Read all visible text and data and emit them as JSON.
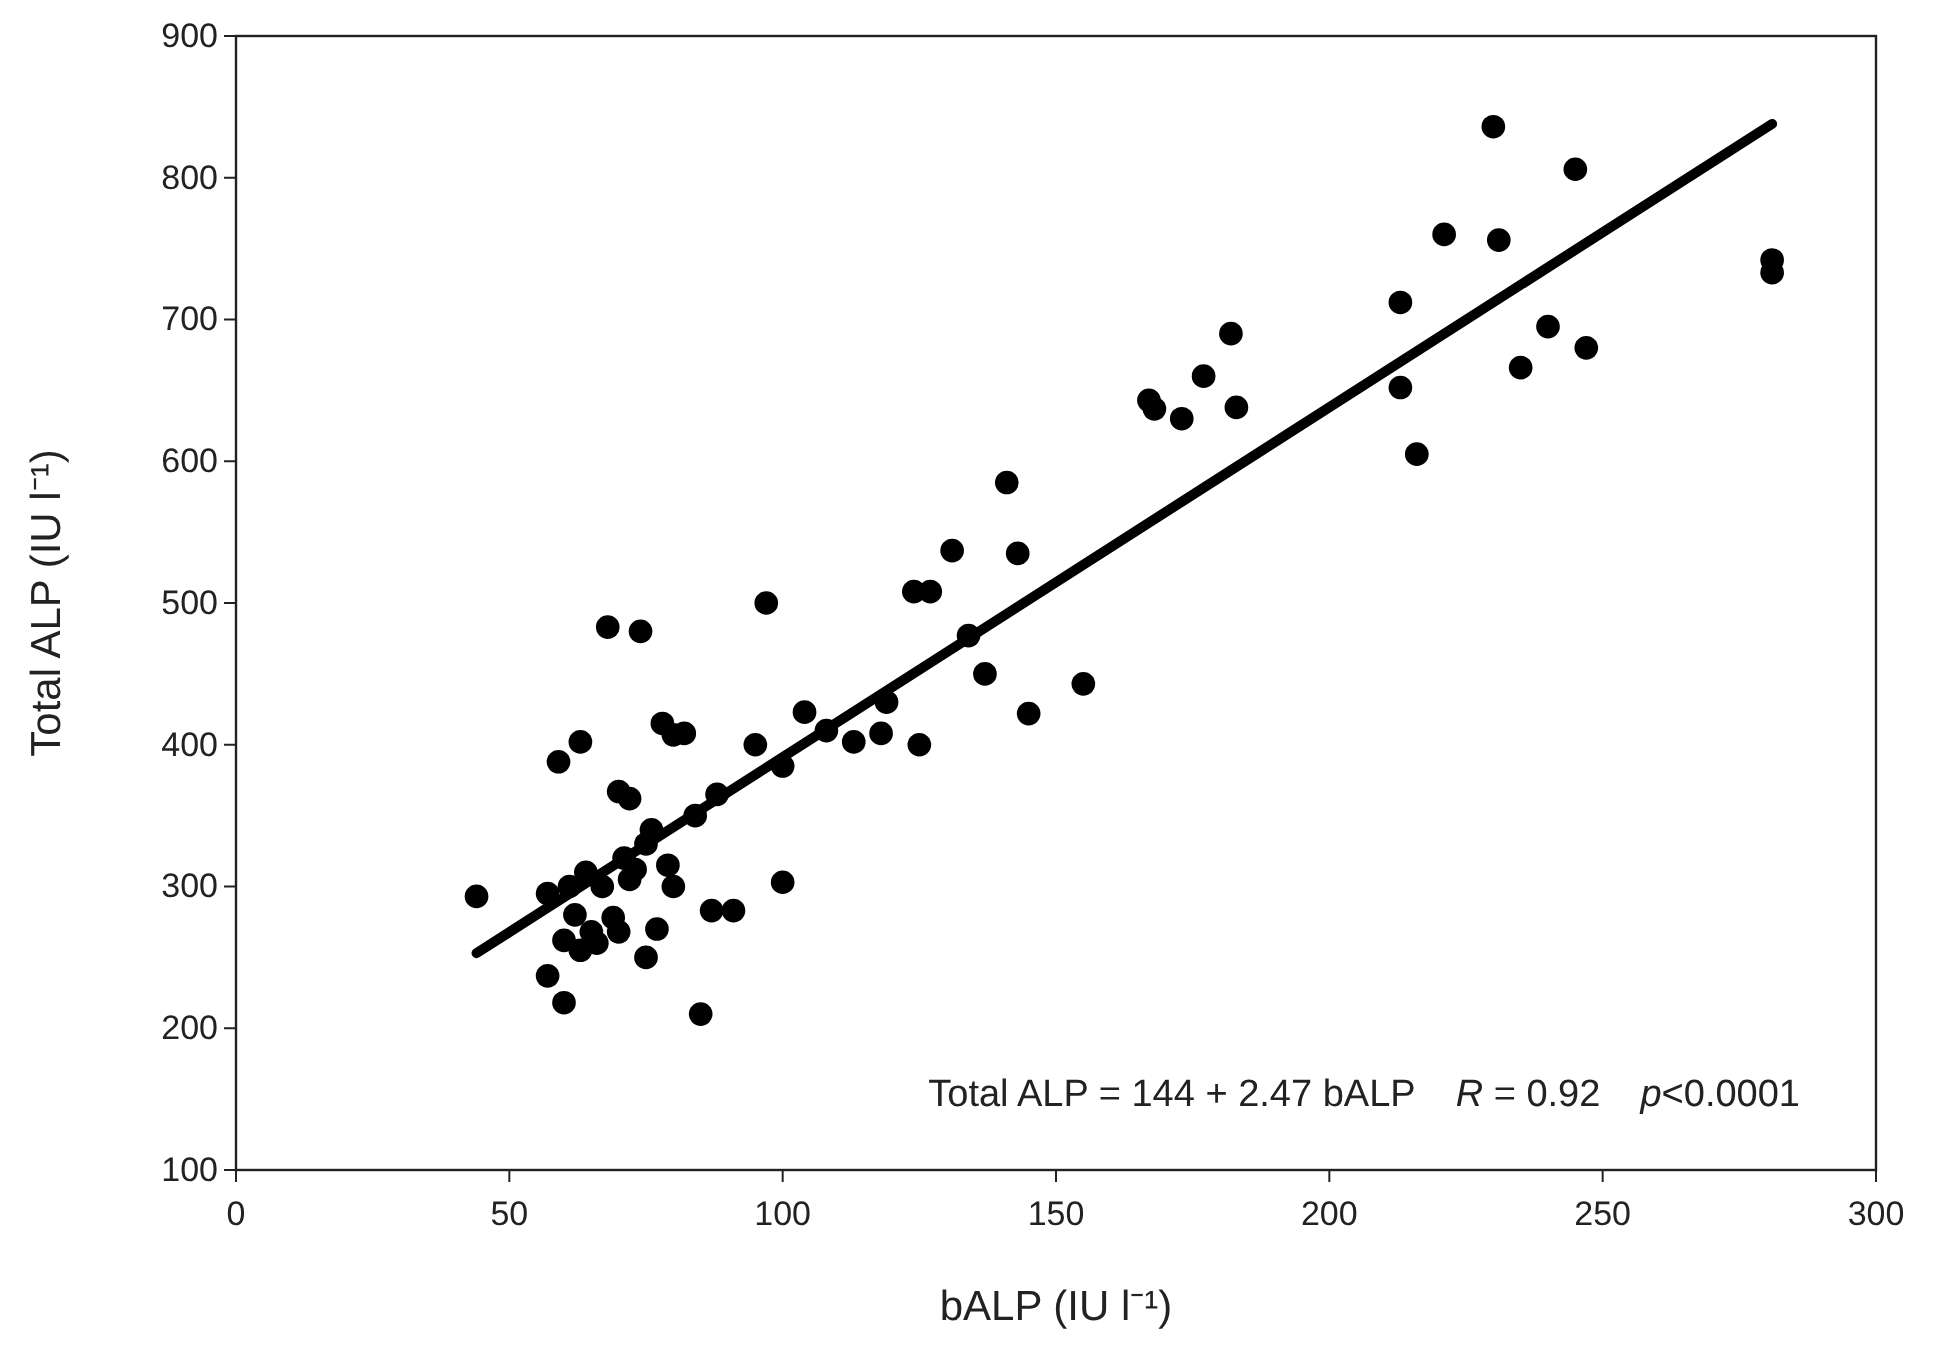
{
  "chart_data": {
    "type": "scatter",
    "xlabel": "bALP (IU l⁻¹)",
    "ylabel": "Total ALP (IU l⁻¹)",
    "xlim": [
      0,
      300
    ],
    "xticks": [
      0,
      50,
      100,
      150,
      200,
      250,
      300
    ],
    "ylim": [
      100,
      900
    ],
    "yticks": [
      100,
      200,
      300,
      400,
      500,
      600,
      700,
      800,
      900
    ],
    "grid": false,
    "annotations": [
      "Total ALP = 144 + 2.47 bALP",
      "R = 0.92",
      "p<0.0001"
    ],
    "series": [
      {
        "marker": "circle",
        "color": "#000000",
        "x": [
          44,
          57,
          57,
          59,
          60,
          60,
          61,
          62,
          63,
          63,
          64,
          65,
          66,
          67,
          68,
          69,
          70,
          70,
          71,
          72,
          72,
          73,
          74,
          75,
          75,
          76,
          77,
          78,
          79,
          80,
          80,
          82,
          84,
          85,
          87,
          88,
          91,
          95,
          97,
          100,
          100,
          104,
          108,
          113,
          118,
          119,
          124,
          125,
          127,
          131,
          134,
          137,
          141,
          143,
          145,
          155,
          167,
          168,
          173,
          177,
          182,
          183,
          213,
          213,
          216,
          221,
          230,
          231,
          235,
          240,
          245,
          247,
          281,
          281
        ],
        "values": [
          293,
          237,
          295,
          388,
          262,
          218,
          300,
          280,
          255,
          402,
          310,
          268,
          260,
          300,
          483,
          278,
          268,
          367,
          320,
          305,
          362,
          312,
          480,
          330,
          250,
          340,
          270,
          415,
          315,
          300,
          407,
          408,
          350,
          210,
          283,
          365,
          283,
          400,
          500,
          385,
          303,
          423,
          410,
          402,
          408,
          430,
          508,
          400,
          508,
          537,
          477,
          450,
          585,
          535,
          422,
          443,
          643,
          637,
          630,
          660,
          690,
          638,
          712,
          652,
          605,
          760,
          836,
          756,
          666,
          695,
          806,
          680,
          742,
          733
        ]
      },
      {
        "type": "line",
        "color": "#000000",
        "x": [
          44,
          281
        ],
        "values": [
          253,
          838
        ]
      }
    ]
  }
}
